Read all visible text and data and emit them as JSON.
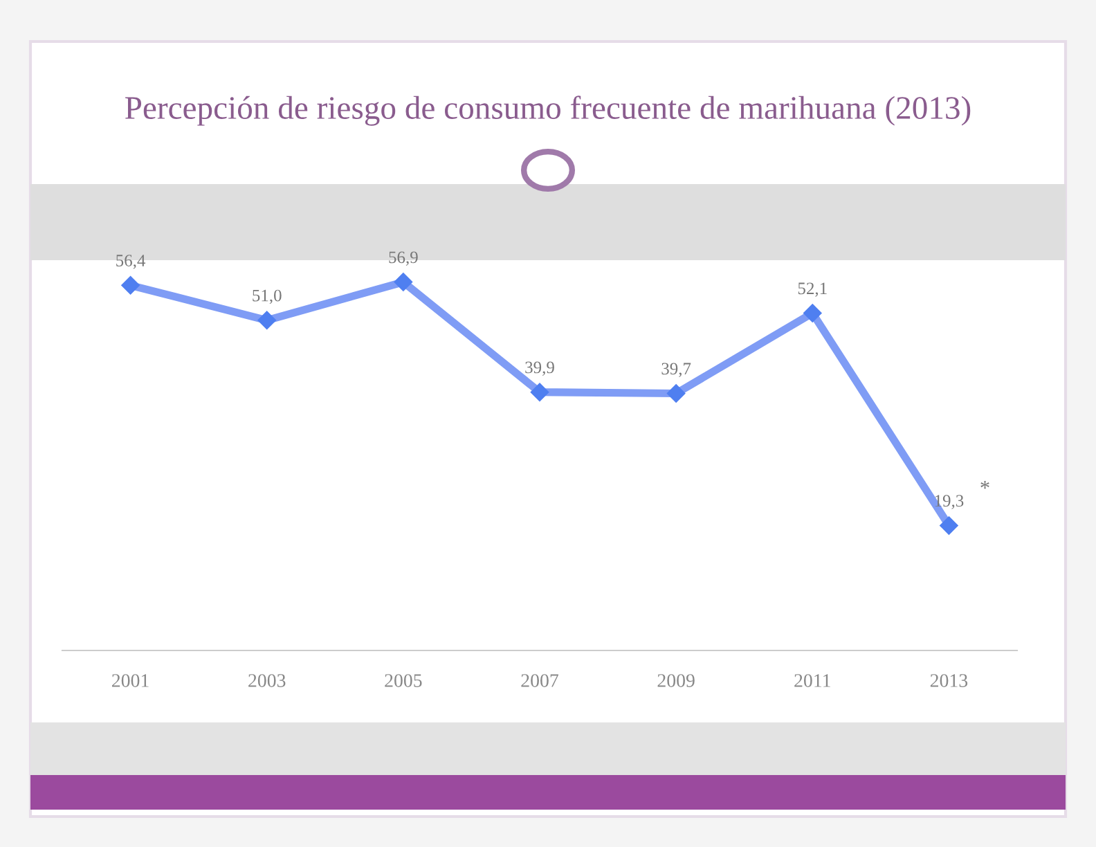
{
  "chart_data": {
    "type": "line",
    "title": "Percepción de riesgo de consumo frecuente de marihuana (2013)",
    "categories": [
      "2001",
      "2003",
      "2005",
      "2007",
      "2009",
      "2011",
      "2013"
    ],
    "series": [
      {
        "color": "#7f9cf5",
        "values": [
          56.4,
          51.0,
          56.9,
          39.9,
          39.7,
          52.1,
          19.3
        ],
        "value_labels": [
          "56,4",
          "51,0",
          "56,9",
          "39,9",
          "39,7",
          "52,1",
          "19,3"
        ]
      }
    ],
    "marker": "diamond",
    "line_style": "solid",
    "grid": false,
    "legend": false,
    "annotations": [
      {
        "text": "*",
        "x": "2013",
        "y": 19.3
      }
    ]
  }
}
